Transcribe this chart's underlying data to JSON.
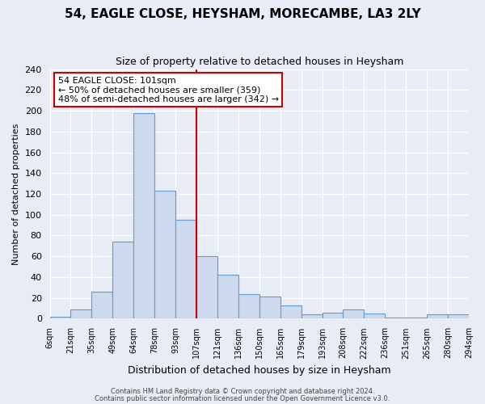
{
  "title": "54, EAGLE CLOSE, HEYSHAM, MORECAMBE, LA3 2LY",
  "subtitle": "Size of property relative to detached houses in Heysham",
  "xlabel": "Distribution of detached houses by size in Heysham",
  "ylabel": "Number of detached properties",
  "bar_labels": [
    "6sqm",
    "21sqm",
    "35sqm",
    "49sqm",
    "64sqm",
    "78sqm",
    "93sqm",
    "107sqm",
    "121sqm",
    "136sqm",
    "150sqm",
    "165sqm",
    "179sqm",
    "193sqm",
    "208sqm",
    "222sqm",
    "236sqm",
    "251sqm",
    "265sqm",
    "280sqm",
    "294sqm"
  ],
  "bar_heights": [
    2,
    9,
    26,
    74,
    198,
    123,
    95,
    60,
    42,
    24,
    21,
    13,
    4,
    6,
    9,
    5,
    1,
    1,
    4,
    4
  ],
  "bar_color": "#ccd9ee",
  "bar_edge_color": "#6699cc",
  "vline_position": 7,
  "vline_color": "#cc0000",
  "annotation_title": "54 EAGLE CLOSE: 101sqm",
  "annotation_line1": "← 50% of detached houses are smaller (359)",
  "annotation_line2": "48% of semi-detached houses are larger (342) →",
  "annotation_box_facecolor": "#ffffff",
  "annotation_box_edgecolor": "#cc0000",
  "ylim": [
    0,
    240
  ],
  "yticks": [
    0,
    20,
    40,
    60,
    80,
    100,
    120,
    140,
    160,
    180,
    200,
    220,
    240
  ],
  "footer_line1": "Contains HM Land Registry data © Crown copyright and database right 2024.",
  "footer_line2": "Contains public sector information licensed under the Open Government Licence v3.0.",
  "fig_facecolor": "#e8edf5",
  "axes_facecolor": "#e8edf5",
  "grid_color": "#ffffff",
  "title_fontsize": 11,
  "subtitle_fontsize": 9,
  "ylabel_fontsize": 8,
  "xlabel_fontsize": 9,
  "ytick_fontsize": 8,
  "xtick_fontsize": 7
}
